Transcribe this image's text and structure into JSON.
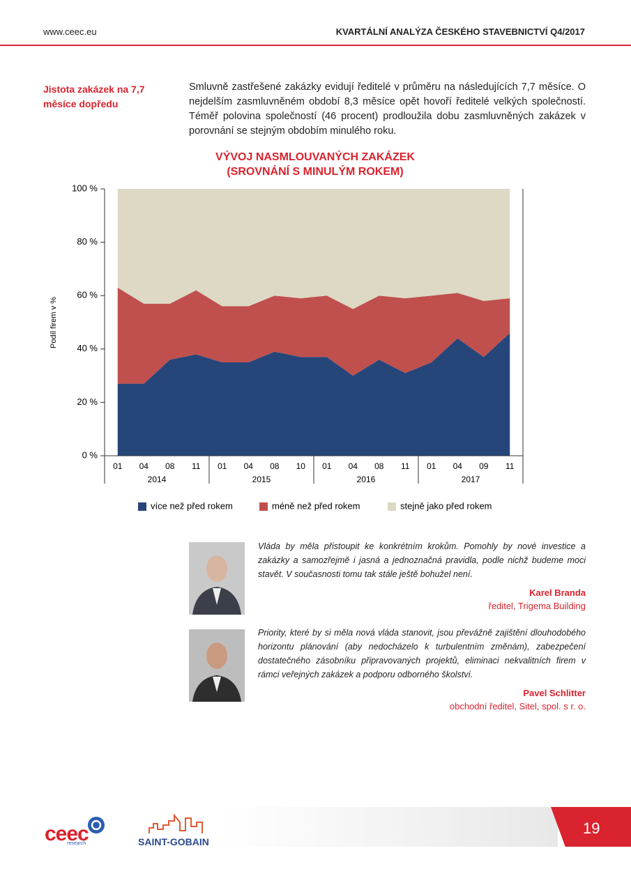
{
  "header": {
    "site": "www.ceec.eu",
    "title": "KVARTÁLNÍ ANALÝZA ČESKÉHO STAVEBNICTVÍ Q4/2017"
  },
  "section": {
    "heading": "Jistota zakázek na 7,7 měsíce dopředu",
    "paragraph": "Smluvně zastřešené zakázky evidují ředitelé v průměru na následujících 7,7 měsíce. O nejdelším zasmluvněném období 8,3 měsíce opět hovoří ředitelé velkých společností. Téměř polovina společností (46 procent) prodloužila dobu zasmluvněných zakázek v porovnání se stejným obdobím minulého roku."
  },
  "chart_data": {
    "type": "area",
    "stacked": true,
    "title": "VÝVOJ NASMLOUVANÝCH ZAKÁZEK",
    "subtitle": "(SROVNÁNÍ S MINULÝM ROKEM)",
    "y_label": "Podíl firem v %",
    "categories": [
      "01",
      "04",
      "08",
      "11",
      "01",
      "04",
      "08",
      "10",
      "01",
      "04",
      "08",
      "11",
      "01",
      "04",
      "09",
      "11"
    ],
    "year_groups": [
      "2014",
      "2015",
      "2016",
      "2017"
    ],
    "series": [
      {
        "name": "více než před rokem",
        "color": "#26467a",
        "values": [
          27,
          27,
          36,
          38,
          35,
          35,
          39,
          37,
          37,
          30,
          36,
          31,
          35,
          44,
          37,
          46
        ]
      },
      {
        "name": "méně než před rokem",
        "color": "#c0504d",
        "values": [
          36,
          30,
          21,
          24,
          21,
          21,
          21,
          22,
          23,
          25,
          24,
          28,
          25,
          17,
          21,
          13
        ]
      },
      {
        "name": "stejně jako před rokem",
        "color": "#ddd9c4",
        "values": [
          37,
          43,
          43,
          38,
          44,
          44,
          40,
          41,
          40,
          45,
          40,
          41,
          40,
          39,
          42,
          41
        ]
      }
    ],
    "ylim": [
      0,
      100
    ],
    "yticks": [
      {
        "value": 0,
        "label": "0 %"
      },
      {
        "value": 20,
        "label": "20 %"
      },
      {
        "value": 40,
        "label": "40 %"
      },
      {
        "value": 60,
        "label": "60 %"
      },
      {
        "value": 80,
        "label": "80 %"
      },
      {
        "value": 100,
        "label": "100 %"
      }
    ]
  },
  "quotes": [
    {
      "text": "Vláda by měla přistoupit ke konkrétním krokům. Pomohly by nové investice a zakázky a samozřejmě i jasná a jednoznačná pravidla, podle nichž budeme moci stavět. V současnosti tomu tak stále ještě bohužel není.",
      "name": "Karel Branda",
      "role": "ředitel, Trigema Building"
    },
    {
      "text": "Priority, které by si měla nová vláda stanovit, jsou převážně zajištění dlouhodobého horizontu plánování (aby nedocházelo k turbulentním změnám), zabezpečení dostatečného zásobníku připravovaných projektů, eliminaci nekvalitních firem v rámci veřejných zakázek a podporu odborného školství.",
      "name": "Pavel Schlitter",
      "role": "obchodní ředitel, Sitel, spol. s r. o."
    }
  ],
  "footer": {
    "logo_ceec": "ceec",
    "logo_ceec_sub": "research",
    "logo_partner": "SAINT-GOBAIN",
    "page": "19"
  }
}
